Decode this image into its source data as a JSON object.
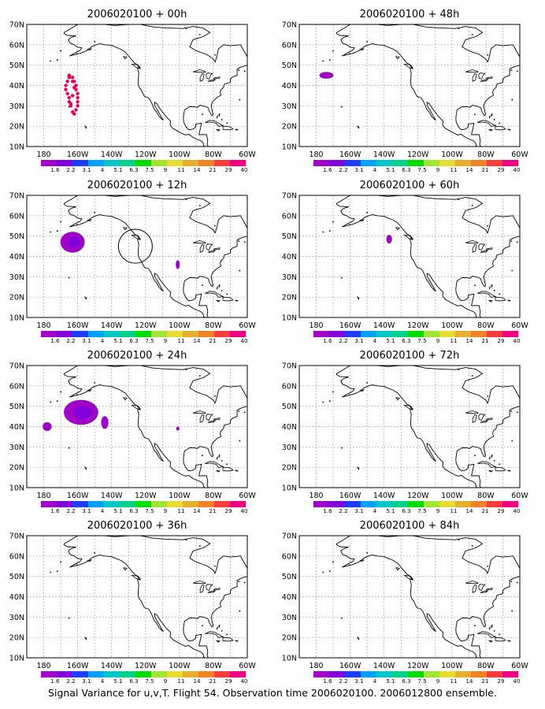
{
  "caption": "Signal Variance for u,v,T. Flight 54. Observation time 2006020100. 2006012800 ensemble.",
  "lat_labels": [
    "70N",
    "60N",
    "50N",
    "40N",
    "30N",
    "20N",
    "10N"
  ],
  "lon_labels": [
    "180",
    "160W",
    "140W",
    "120W",
    "100W",
    "80W",
    "60W"
  ],
  "colorbar": {
    "colors": [
      "#a000c8",
      "#8200dc",
      "#1e3cff",
      "#00a0ff",
      "#00c8c8",
      "#00d28c",
      "#00dc00",
      "#a0e632",
      "#e6dc32",
      "#e6af2d",
      "#f08228",
      "#fa3c3c",
      "#f00082"
    ],
    "labels": [
      "1.6",
      "2.2",
      "3.1",
      "4",
      "5.1",
      "6.3",
      "7.5",
      "9",
      "11",
      "14",
      "21",
      "29",
      "40"
    ]
  },
  "panels": [
    {
      "title": "2006020100 + 00h"
    },
    {
      "title": "2006020100 + 48h"
    },
    {
      "title": "2006020100 + 12h"
    },
    {
      "title": "2006020100 + 60h"
    },
    {
      "title": "2006020100 + 24h"
    },
    {
      "title": "2006020100 + 72h"
    },
    {
      "title": "2006020100 + 36h"
    },
    {
      "title": "2006020100 + 84h"
    }
  ],
  "features": {
    "track_points": [
      [
        -165,
        45
      ],
      [
        -163,
        44
      ],
      [
        -162,
        42
      ],
      [
        -161,
        40
      ],
      [
        -161,
        38
      ],
      [
        -160,
        36
      ],
      [
        -160,
        34
      ],
      [
        -160,
        32
      ],
      [
        -160,
        30
      ],
      [
        -161,
        28
      ],
      [
        -162,
        26
      ],
      [
        -163,
        27
      ],
      [
        -164,
        30
      ],
      [
        -165,
        32
      ],
      [
        -165,
        34
      ],
      [
        -166,
        36
      ],
      [
        -167,
        38
      ],
      [
        -167,
        40
      ],
      [
        -166,
        42
      ],
      [
        -165,
        44
      ],
      [
        -163,
        42
      ],
      [
        -162,
        39
      ],
      [
        -163,
        35
      ],
      [
        -164,
        31
      ]
    ],
    "target_circle": {
      "lon": -126,
      "lat": 45,
      "radius_deg": 10
    },
    "blobs": {
      "1": [
        {
          "lon": -174,
          "lat": 45,
          "rx": 4,
          "ry": 1.5
        }
      ],
      "2": [
        {
          "lon": -163,
          "lat": 47,
          "rx": 7,
          "ry": 5
        },
        {
          "lon": -101,
          "lat": 36,
          "rx": 1,
          "ry": 2
        }
      ],
      "3": [
        {
          "lon": -137,
          "lat": 48.5,
          "rx": 1.5,
          "ry": 2
        }
      ],
      "4": [
        {
          "lon": -158,
          "lat": 47,
          "rx": 10,
          "ry": 6
        },
        {
          "lon": -178,
          "lat": 40,
          "rx": 2.5,
          "ry": 2
        },
        {
          "lon": -144,
          "lat": 42,
          "rx": 2,
          "ry": 3
        },
        {
          "lon": -101,
          "lat": 39,
          "rx": 0.8,
          "ry": 0.8
        }
      ]
    }
  }
}
